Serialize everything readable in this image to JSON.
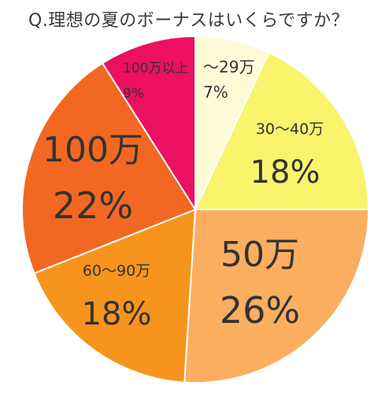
{
  "chart_data": {
    "type": "pie",
    "title": "Q.理想の夏のボーナスはいくらですか？",
    "slices": [
      {
        "label": "〜29万",
        "pct_text": "7%",
        "value": 7,
        "color": "#FFFBD9"
      },
      {
        "label": "30〜40万",
        "pct_text": "18%",
        "value": 18,
        "color": "#FAF36C"
      },
      {
        "label": "50万",
        "pct_text": "26%",
        "value": 26,
        "color": "#FBAE5F"
      },
      {
        "label": "60〜90万",
        "pct_text": "18%",
        "value": 18,
        "color": "#F7941E"
      },
      {
        "label": "100万",
        "pct_text": "22%",
        "value": 22,
        "color": "#F26822"
      },
      {
        "label": "100万以上",
        "pct_text": "9%",
        "value": 9,
        "color": "#EC1060"
      }
    ]
  }
}
